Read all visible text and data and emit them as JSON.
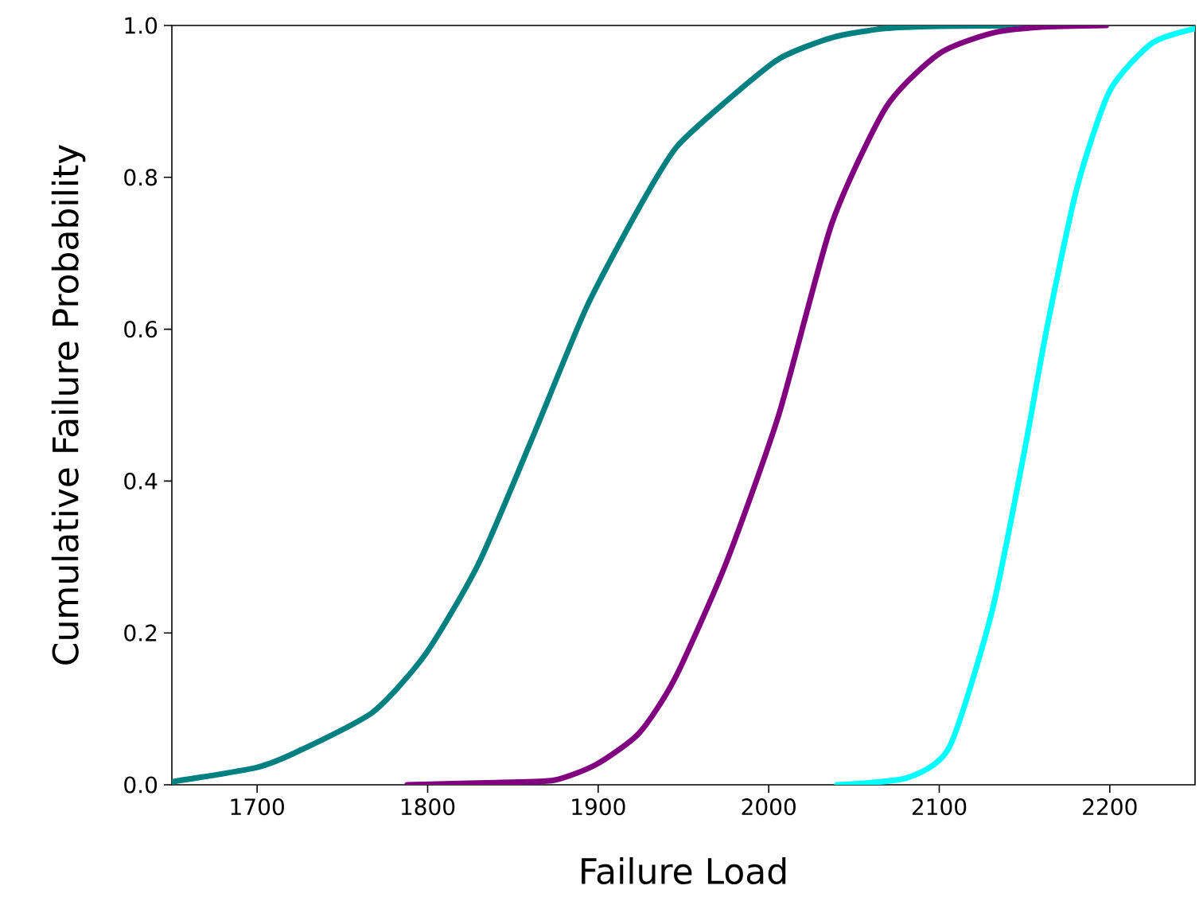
{
  "chart_data": {
    "type": "line",
    "xlabel": "Failure Load",
    "ylabel": "Cumulative Failure Probability",
    "xlim": [
      1650,
      2250
    ],
    "ylim": [
      0,
      1.0
    ],
    "xticks": [
      1700,
      1800,
      1900,
      2000,
      2100,
      2200
    ],
    "yticks": [
      {
        "value": 0,
        "label": "0.0"
      },
      {
        "value": 0.2,
        "label": "0.2"
      },
      {
        "value": 0.4,
        "label": "0.4"
      },
      {
        "value": 0.6,
        "label": "0.6"
      },
      {
        "value": 0.8,
        "label": "0.8"
      },
      {
        "value": 1.0,
        "label": "1.0"
      }
    ],
    "grid": false,
    "marker": "none",
    "line_style": "solid",
    "series": [
      {
        "color": "#008080",
        "x": [
          1650,
          1700,
          1724,
          1768,
          1799,
          1830,
          1862,
          1893,
          1924,
          1946,
          1975,
          2006,
          2037,
          2068,
          2100,
          2156
        ],
        "values": [
          0.004,
          0.023,
          0.044,
          0.096,
          0.173,
          0.292,
          0.46,
          0.628,
          0.76,
          0.84,
          0.9,
          0.956,
          0.984,
          0.996,
          0.999,
          1.0
        ]
      },
      {
        "color": "#800080",
        "x": [
          1788,
          1840,
          1874,
          1899,
          1924,
          1945,
          1975,
          2006,
          2037,
          2069,
          2100,
          2131,
          2160,
          2198
        ],
        "values": [
          0.0,
          0.003,
          0.006,
          0.027,
          0.068,
          0.14,
          0.292,
          0.488,
          0.739,
          0.893,
          0.963,
          0.99,
          0.998,
          1.0
        ]
      },
      {
        "color": "#00ffff",
        "x": [
          2040,
          2081,
          2106,
          2131,
          2150,
          2163,
          2181,
          2200,
          2225,
          2250
        ],
        "values": [
          0.0,
          0.009,
          0.05,
          0.229,
          0.44,
          0.6,
          0.788,
          0.914,
          0.977,
          0.996
        ]
      }
    ]
  }
}
